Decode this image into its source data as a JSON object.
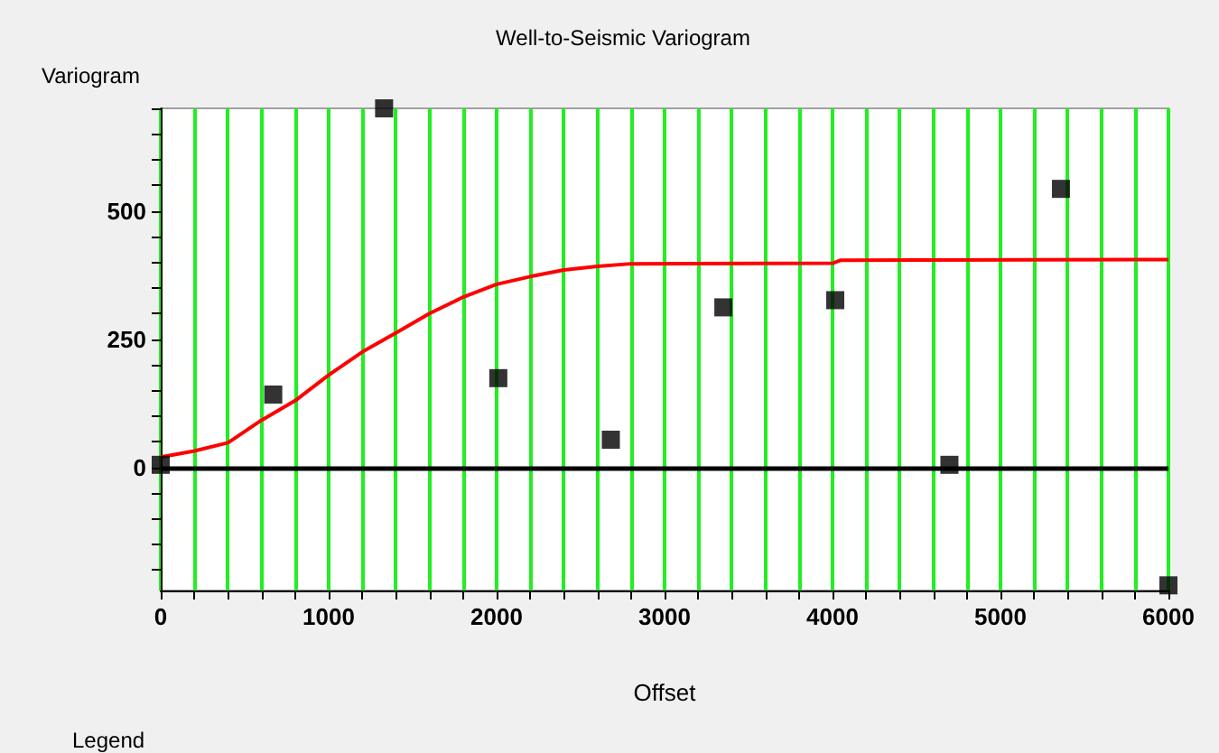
{
  "chart_data": {
    "type": "scatter",
    "title": "Well-to-Seismic Variogram",
    "ylabel": "Variogram",
    "xlabel": "Offset",
    "annotations": [
      "Legend"
    ],
    "xlim": [
      0,
      6000
    ],
    "ylim": [
      -240,
      700
    ],
    "xticks": [
      0,
      {
        "value": 200,
        "label": null
      },
      {
        "value": 400,
        "label": null
      },
      {
        "value": 600,
        "label": null
      },
      {
        "value": 800,
        "label": null
      },
      1000,
      {
        "value": 1200,
        "label": null
      },
      {
        "value": 1400,
        "label": null
      },
      {
        "value": 1600,
        "label": null
      },
      {
        "value": 1800,
        "label": null
      },
      2000,
      {
        "value": 2200,
        "label": null
      },
      {
        "value": 2400,
        "label": null
      },
      {
        "value": 2600,
        "label": null
      },
      {
        "value": 2800,
        "label": null
      },
      3000,
      {
        "value": 3200,
        "label": null
      },
      {
        "value": 3400,
        "label": null
      },
      {
        "value": 3600,
        "label": null
      },
      {
        "value": 3800,
        "label": null
      },
      4000,
      {
        "value": 4200,
        "label": null
      },
      {
        "value": 4400,
        "label": null
      },
      {
        "value": 4600,
        "label": null
      },
      {
        "value": 4800,
        "label": null
      },
      5000,
      {
        "value": 5200,
        "label": null
      },
      {
        "value": 5400,
        "label": null
      },
      {
        "value": 5600,
        "label": null
      },
      {
        "value": 5800,
        "label": null
      },
      6000
    ],
    "yticks": [
      {
        "value": -200,
        "label": null
      },
      {
        "value": -150,
        "label": null
      },
      {
        "value": -100,
        "label": null
      },
      {
        "value": -50,
        "label": null
      },
      0,
      {
        "value": 50,
        "label": null
      },
      {
        "value": 100,
        "label": null
      },
      {
        "value": 150,
        "label": null
      },
      {
        "value": 200,
        "label": null
      },
      250,
      {
        "value": 300,
        "label": null
      },
      {
        "value": 350,
        "label": null
      },
      {
        "value": 400,
        "label": null
      },
      {
        "value": 450,
        "label": null
      },
      500,
      {
        "value": 550,
        "label": null
      },
      {
        "value": 600,
        "label": null
      },
      {
        "value": 650,
        "label": null
      },
      {
        "value": 700,
        "label": null
      }
    ],
    "grid": "x",
    "ref_lines": [
      {
        "axis": "y",
        "value": 0,
        "color": "#000000",
        "line_style": "solid"
      }
    ],
    "series": [
      {
        "type": "line",
        "color": "#ff0000",
        "marker": "none",
        "x": [
          0,
          200,
          400,
          600,
          800,
          1000,
          1200,
          1400,
          1600,
          1800,
          2000,
          2200,
          2400,
          2600,
          2800,
          4000,
          4050,
          6000
        ],
        "values": [
          20,
          32,
          48,
          92,
          130,
          180,
          225,
          262,
          300,
          332,
          357,
          372,
          385,
          392,
          397,
          398,
          404,
          405
        ]
      },
      {
        "color": "#000000",
        "marker": "square",
        "x": [
          0,
          670,
          1330,
          2010,
          2680,
          3350,
          4016,
          4696,
          5360,
          6000
        ],
        "values": [
          5,
          142,
          700,
          174,
          54,
          312,
          326,
          5,
          543,
          -230
        ]
      }
    ]
  }
}
